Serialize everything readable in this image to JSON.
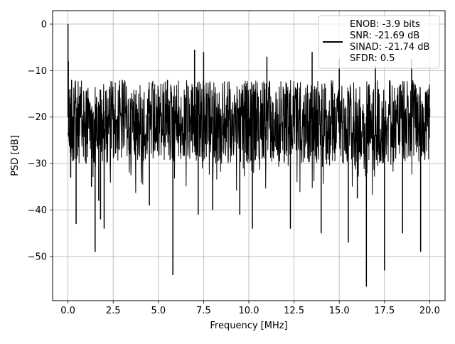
{
  "chart_data": {
    "type": "line",
    "title": "",
    "xlabel": "Frequency [MHz]",
    "ylabel": "PSD [dB]",
    "xlim": [
      -0.85,
      20.85
    ],
    "ylim": [
      -59.5,
      2.9
    ],
    "xticks": [
      0.0,
      2.5,
      5.0,
      7.5,
      10.0,
      12.5,
      15.0,
      17.5,
      20.0
    ],
    "xtick_labels": [
      "0.0",
      "2.5",
      "5.0",
      "7.5",
      "10.0",
      "12.5",
      "15.0",
      "17.5",
      "20.0"
    ],
    "yticks": [
      0,
      -10,
      -20,
      -30,
      -40,
      -50
    ],
    "ytick_labels": [
      "0",
      "−10",
      "−20",
      "−30",
      "−40",
      "−50"
    ],
    "grid": true,
    "legend_position": "top-right",
    "legend_lines": [
      "ENOB: -3.9 bits",
      "SNR: -21.69 dB",
      "SINAD: -21.74 dB",
      "SFDR: 0.5"
    ],
    "series": [
      {
        "color": "#000000",
        "description": "dense noise-floor spectrum from 0 to 20 MHz; peak at DC, floor mostly between about -12 and -30 dB with deep dips",
        "x": [
          0.0,
          0.02,
          0.05,
          0.1,
          0.15,
          0.2,
          0.3,
          0.45,
          0.5,
          0.7,
          1.0,
          1.3,
          1.5,
          1.7,
          1.8,
          2.0,
          2.3,
          3.0,
          4.5,
          5.5,
          5.8,
          6.5,
          7.0,
          7.2,
          7.5,
          8.0,
          8.5,
          9.5,
          10.2,
          11.0,
          12.0,
          12.3,
          13.5,
          14.0,
          15.0,
          15.5,
          16.0,
          16.5,
          17.0,
          17.5,
          18.5,
          19.0,
          19.5,
          20.0
        ],
        "y": [
          0.0,
          -8.0,
          -14.0,
          -22.0,
          -33.0,
          -12.0,
          -25.0,
          -43.0,
          -18.0,
          -15.0,
          -30.0,
          -35.0,
          -49.0,
          -38.0,
          -42.0,
          -44.0,
          -14.0,
          -12.0,
          -39.0,
          -12.0,
          -54.0,
          -25.0,
          -5.5,
          -41.0,
          -6.0,
          -40.0,
          -20.0,
          -41.0,
          -44.0,
          -7.0,
          -15.0,
          -44.0,
          -6.0,
          -45.0,
          -7.5,
          -47.0,
          -37.5,
          -56.5,
          -9.0,
          -53.0,
          -45.0,
          -7.5,
          -49.0,
          -18.0
        ]
      }
    ]
  }
}
